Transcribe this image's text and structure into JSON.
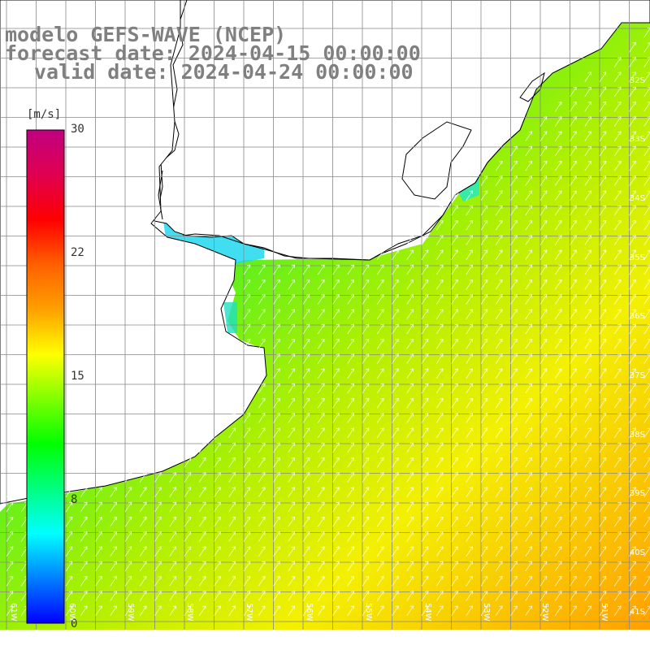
{
  "title": {
    "line1": "modelo GEFS-WAVE (NCEP)",
    "line2": "forecast date: 2024-04-15 00:00:00",
    "line3": "valid date: 2024-04-24 00:00:00"
  },
  "colorbar": {
    "unit": "[m/s]",
    "ticks": [
      {
        "label": "30",
        "value": 30
      },
      {
        "label": "22",
        "value": 22
      },
      {
        "label": "15",
        "value": 15
      },
      {
        "label": "8",
        "value": 8
      },
      {
        "label": "0",
        "value": 0
      }
    ],
    "range": [
      0,
      30
    ],
    "stops": [
      "#0000ff",
      "#0080ff",
      "#00ffff",
      "#00ff80",
      "#00ff00",
      "#80ff00",
      "#ffff00",
      "#ffa000",
      "#ff6000",
      "#ff0000",
      "#e00050",
      "#c00080"
    ]
  },
  "map": {
    "lat_labels": [
      "32S",
      "33S",
      "34S",
      "35S",
      "36S",
      "37S",
      "38S",
      "39S",
      "40S",
      "41S"
    ],
    "lon_labels": [
      "61W",
      "60W",
      "59W",
      "58W",
      "57W",
      "56W",
      "55W",
      "54W",
      "53W",
      "52W",
      "51W"
    ],
    "lat_range": [
      -41.1,
      -31.4
    ],
    "lon_range": [
      -61.3,
      -51.0
    ],
    "wind_direction": "SW",
    "land_color": "#ffffff",
    "grid_color": "#888888"
  }
}
